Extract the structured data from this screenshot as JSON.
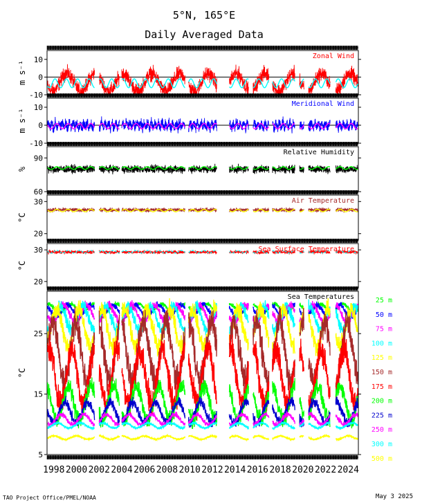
{
  "title": "5°N, 165°E",
  "subtitle": "Daily Averaged Data",
  "footer_left": "TAO Project Office/PMEL/NOAA",
  "footer_right": "May  3 2025",
  "x_ticks": [
    "1998",
    "2000",
    "2002",
    "2004",
    "2006",
    "2008",
    "2010",
    "2012",
    "2014",
    "2016",
    "2018",
    "2020",
    "2022",
    "2024"
  ],
  "colors": {
    "red": "#ff0000",
    "blue": "#0000ff",
    "cyan": "#00ffff",
    "magenta": "#ff00ff",
    "green": "#00ff00",
    "yellow": "#ffff00",
    "brown": "#a52a2a",
    "black": "#000000",
    "navy": "#0000cd"
  },
  "legend": [
    {
      "label": "25 m",
      "color": "#00ff00"
    },
    {
      "label": "50 m",
      "color": "#0000ff"
    },
    {
      "label": "75 m",
      "color": "#ff00ff"
    },
    {
      "label": "100 m",
      "color": "#00ffff"
    },
    {
      "label": "125 m",
      "color": "#ffff00"
    },
    {
      "label": "150 m",
      "color": "#a52a2a"
    },
    {
      "label": "175 m",
      "color": "#ff0000"
    },
    {
      "label": "200 m",
      "color": "#00ff00"
    },
    {
      "label": "225 m",
      "color": "#0000cd"
    },
    {
      "label": "250 m",
      "color": "#ff00ff"
    },
    {
      "label": "300 m",
      "color": "#00ffff"
    },
    {
      "label": "500 m",
      "color": "#ffff00"
    }
  ],
  "chart_data": [
    {
      "type": "line",
      "title": "Zonal Wind",
      "ylabel": "m s⁻¹",
      "ylim": [
        -10,
        15
      ],
      "yticks": [
        -10,
        0,
        10
      ],
      "zero_line": true,
      "series": [
        {
          "color": "#ff0000",
          "kind": "observed"
        },
        {
          "color": "#00ffff",
          "kind": "climatology"
        }
      ]
    },
    {
      "type": "line",
      "title": "Meridional Wind",
      "ylabel": "m s⁻¹",
      "ylim": [
        -10,
        15
      ],
      "yticks": [
        -10,
        0,
        10
      ],
      "zero_line": true,
      "series": [
        {
          "color": "#0000ff",
          "kind": "observed"
        },
        {
          "color": "#ff00ff",
          "kind": "climatology"
        }
      ]
    },
    {
      "type": "line",
      "title": "Relative Humidity",
      "ylabel": "%",
      "ylim": [
        60,
        100
      ],
      "yticks": [
        60,
        90
      ],
      "series": [
        {
          "color": "#000000",
          "kind": "observed"
        },
        {
          "color": "#00ff00",
          "kind": "climatology"
        }
      ]
    },
    {
      "type": "line",
      "title": "Air Temperature",
      "ylabel": "°C",
      "ylim": [
        18,
        32
      ],
      "yticks": [
        20,
        30
      ],
      "series": [
        {
          "color": "#a52a2a",
          "kind": "observed"
        },
        {
          "color": "#ffff00",
          "kind": "climatology"
        }
      ]
    },
    {
      "type": "line",
      "title": "Sea Surface Temperature",
      "ylabel": "°C",
      "ylim": [
        18,
        32
      ],
      "yticks": [
        20,
        30
      ],
      "series": [
        {
          "color": "#ff0000",
          "kind": "observed"
        },
        {
          "color": "#00ffff",
          "kind": "climatology"
        }
      ]
    },
    {
      "type": "line",
      "title": "Sea Temperatures",
      "ylabel": "°C",
      "ylim": [
        5,
        32
      ],
      "yticks": [
        5,
        15,
        25
      ],
      "series": [
        {
          "name": "25 m",
          "color": "#00ff00"
        },
        {
          "name": "50 m",
          "color": "#0000ff"
        },
        {
          "name": "75 m",
          "color": "#ff00ff"
        },
        {
          "name": "100 m",
          "color": "#00ffff"
        },
        {
          "name": "125 m",
          "color": "#ffff00"
        },
        {
          "name": "150 m",
          "color": "#a52a2a"
        },
        {
          "name": "175 m",
          "color": "#ff0000"
        },
        {
          "name": "200 m",
          "color": "#00ff00"
        },
        {
          "name": "225 m",
          "color": "#0000cd"
        },
        {
          "name": "250 m",
          "color": "#ff00ff"
        },
        {
          "name": "300 m",
          "color": "#00ffff"
        },
        {
          "name": "500 m",
          "color": "#ffff00"
        }
      ]
    }
  ]
}
